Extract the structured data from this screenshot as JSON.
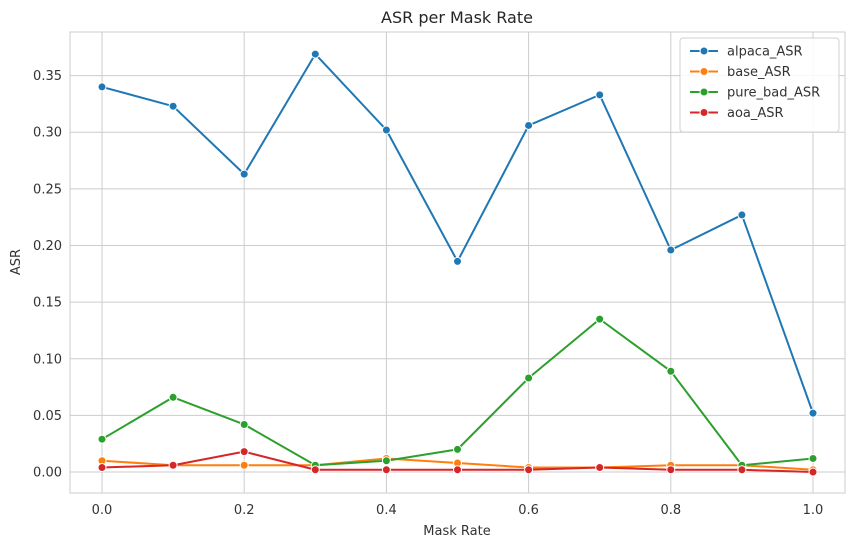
{
  "chart_data": {
    "type": "line",
    "title": "ASR per Mask Rate",
    "xlabel": "Mask Rate",
    "ylabel": "ASR",
    "x": [
      0.0,
      0.1,
      0.2,
      0.3,
      0.4,
      0.5,
      0.6,
      0.7,
      0.8,
      0.9,
      1.0
    ],
    "xlim": [
      -0.045,
      1.045
    ],
    "ylim": [
      -0.0185,
      0.3885
    ],
    "xticks": [
      0.0,
      0.2,
      0.4,
      0.6,
      0.8,
      1.0
    ],
    "xtick_labels": [
      "0.0",
      "0.2",
      "0.4",
      "0.6",
      "0.8",
      "1.0"
    ],
    "yticks": [
      0.0,
      0.05,
      0.1,
      0.15,
      0.2,
      0.25,
      0.3,
      0.35
    ],
    "ytick_labels": [
      "0.00",
      "0.05",
      "0.10",
      "0.15",
      "0.20",
      "0.25",
      "0.30",
      "0.35"
    ],
    "grid": true,
    "legend_position": "top-right",
    "series": [
      {
        "name": "alpaca_ASR",
        "color": "#1f77b4",
        "values": [
          0.34,
          0.323,
          0.263,
          0.369,
          0.302,
          0.186,
          0.306,
          0.333,
          0.196,
          0.227,
          0.052
        ]
      },
      {
        "name": "base_ASR",
        "color": "#ff7f0e",
        "values": [
          0.01,
          0.006,
          0.006,
          0.006,
          0.012,
          0.008,
          0.004,
          0.004,
          0.006,
          0.006,
          0.002
        ]
      },
      {
        "name": "pure_bad_ASR",
        "color": "#2ca02c",
        "values": [
          0.029,
          0.066,
          0.042,
          0.006,
          0.01,
          0.02,
          0.083,
          0.135,
          0.089,
          0.006,
          0.012
        ]
      },
      {
        "name": "aoa_ASR",
        "color": "#d62728",
        "values": [
          0.004,
          0.006,
          0.018,
          0.002,
          0.002,
          0.002,
          0.002,
          0.004,
          0.002,
          0.002,
          0.0
        ]
      }
    ]
  }
}
